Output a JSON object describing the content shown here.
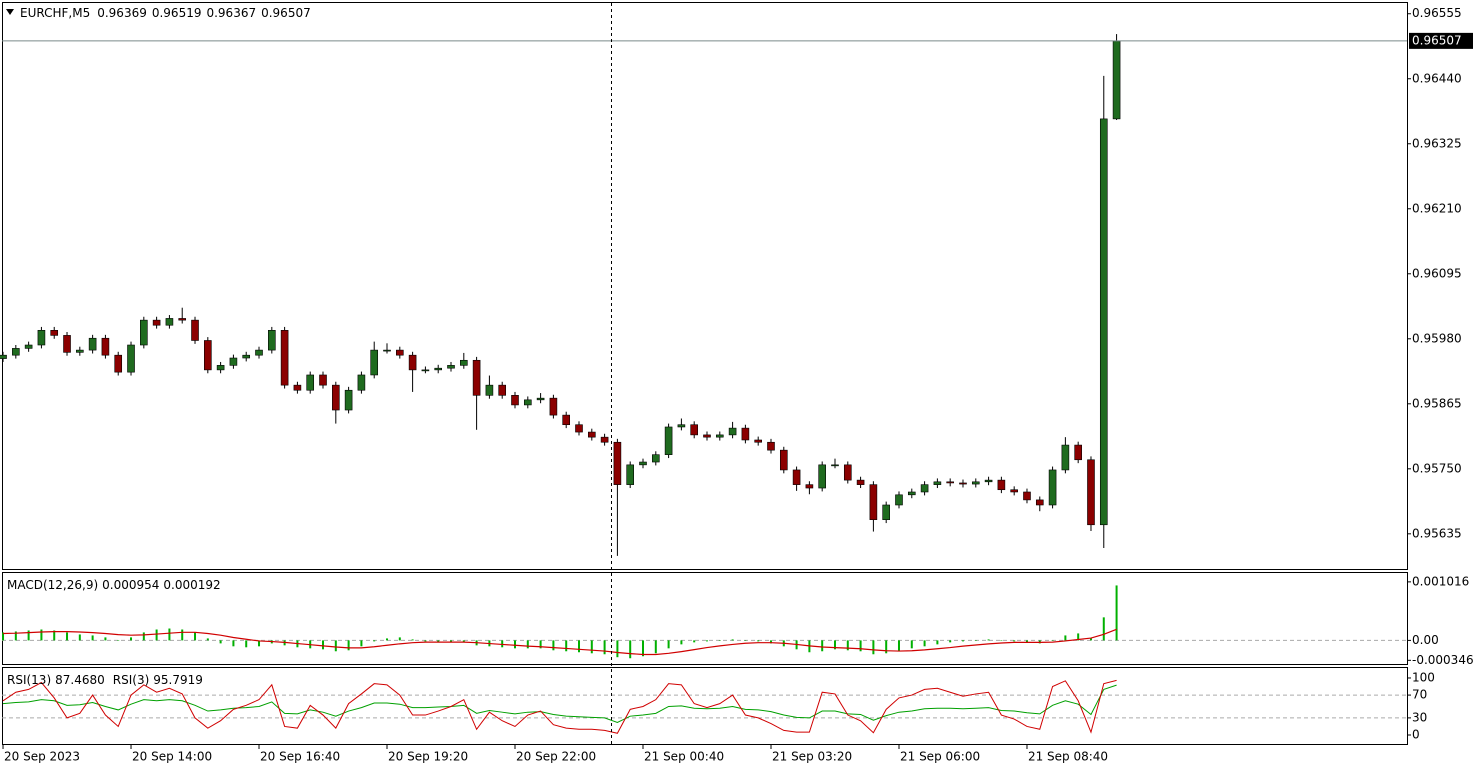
{
  "chart_data": [
    {
      "type": "candlestick",
      "title": "EURCHF,M5",
      "open": [
        0.95945,
        0.95951,
        0.95963,
        0.95969,
        0.95995,
        0.95986,
        0.95956,
        0.9596,
        0.95981,
        0.95951,
        0.95921,
        0.95969,
        0.96013,
        0.96004,
        0.96016,
        0.96013,
        0.95977,
        0.95925,
        0.95933,
        0.95946,
        0.95951,
        0.9596,
        0.95995,
        0.95898,
        0.95889,
        0.95916,
        0.95898,
        0.95854,
        0.95889,
        0.95916,
        0.9596,
        0.9596,
        0.95951,
        0.95925,
        0.95925,
        0.95928,
        0.95933,
        0.95942,
        0.9588,
        0.95898,
        0.9588,
        0.95863,
        0.95872,
        0.95875,
        0.95845,
        0.95828,
        0.95815,
        0.95806,
        0.95797,
        0.95722,
        0.95757,
        0.95762,
        0.95775,
        0.95824,
        0.95828,
        0.9581,
        0.95806,
        0.9581,
        0.95822,
        0.95801,
        0.95797,
        0.95783,
        0.95748,
        0.95722,
        0.95716,
        0.95757,
        0.95757,
        0.9573,
        0.95722,
        0.9566,
        0.95686,
        0.95704,
        0.95709,
        0.95722,
        0.95727,
        0.95725,
        0.95723,
        0.95727,
        0.9573,
        0.95713,
        0.95709,
        0.95695,
        0.95686,
        0.95748,
        0.95792,
        0.95766,
        0.95651,
        0.96369
      ],
      "high": [
        0.95957,
        0.95969,
        0.95975,
        0.96001,
        0.96001,
        0.95992,
        0.95966,
        0.95987,
        0.95987,
        0.95957,
        0.95975,
        0.96019,
        0.96019,
        0.96022,
        0.96035,
        0.96019,
        0.95983,
        0.95939,
        0.95952,
        0.95957,
        0.95966,
        0.96001,
        0.96001,
        0.95904,
        0.95922,
        0.95922,
        0.95904,
        0.95895,
        0.95922,
        0.95975,
        0.95972,
        0.95966,
        0.95957,
        0.95931,
        0.95934,
        0.95939,
        0.95955,
        0.95948,
        0.95915,
        0.95904,
        0.95886,
        0.95878,
        0.95884,
        0.95881,
        0.95851,
        0.95834,
        0.95821,
        0.95812,
        0.95803,
        0.95763,
        0.95768,
        0.95781,
        0.9583,
        0.95839,
        0.95834,
        0.95816,
        0.95816,
        0.95833,
        0.95828,
        0.95807,
        0.95803,
        0.95789,
        0.95754,
        0.95728,
        0.95763,
        0.95768,
        0.95763,
        0.95736,
        0.95728,
        0.95692,
        0.9571,
        0.95715,
        0.95728,
        0.95733,
        0.95733,
        0.95731,
        0.95733,
        0.95736,
        0.95736,
        0.95719,
        0.95715,
        0.95701,
        0.95754,
        0.95806,
        0.95798,
        0.95772,
        0.96445,
        0.96519
      ],
      "low": [
        0.95939,
        0.95945,
        0.95957,
        0.95963,
        0.9598,
        0.9595,
        0.9595,
        0.95954,
        0.95945,
        0.95915,
        0.95915,
        0.95963,
        0.95998,
        0.95998,
        0.96007,
        0.95971,
        0.95919,
        0.95919,
        0.95927,
        0.9594,
        0.95945,
        0.95954,
        0.95892,
        0.95883,
        0.95883,
        0.95892,
        0.9583,
        0.95848,
        0.95883,
        0.9591,
        0.95954,
        0.95945,
        0.95886,
        0.95919,
        0.95919,
        0.95922,
        0.95927,
        0.95819,
        0.95874,
        0.95874,
        0.95857,
        0.95857,
        0.95866,
        0.95839,
        0.95822,
        0.95809,
        0.958,
        0.95791,
        0.95596,
        0.95716,
        0.95751,
        0.95756,
        0.95769,
        0.95818,
        0.95804,
        0.958,
        0.958,
        0.95804,
        0.95795,
        0.95791,
        0.95777,
        0.95742,
        0.95711,
        0.95705,
        0.9571,
        0.95751,
        0.95724,
        0.95716,
        0.95639,
        0.95654,
        0.9568,
        0.95698,
        0.95703,
        0.95716,
        0.95719,
        0.95717,
        0.95717,
        0.95721,
        0.95707,
        0.95703,
        0.95689,
        0.95675,
        0.9568,
        0.95742,
        0.9576,
        0.9564,
        0.9561,
        0.96367
      ],
      "close": [
        0.95951,
        0.95963,
        0.95969,
        0.95995,
        0.95986,
        0.95956,
        0.9596,
        0.95981,
        0.95951,
        0.95921,
        0.95969,
        0.96013,
        0.96004,
        0.96016,
        0.96013,
        0.95977,
        0.95925,
        0.95933,
        0.95946,
        0.95951,
        0.9596,
        0.95995,
        0.95898,
        0.95889,
        0.95916,
        0.95898,
        0.95854,
        0.95889,
        0.95916,
        0.9596,
        0.9596,
        0.95951,
        0.95925,
        0.95925,
        0.95928,
        0.95933,
        0.95942,
        0.9588,
        0.95898,
        0.9588,
        0.95863,
        0.95872,
        0.95875,
        0.95845,
        0.95828,
        0.95815,
        0.95806,
        0.95797,
        0.95722,
        0.95757,
        0.95762,
        0.95775,
        0.95824,
        0.95828,
        0.9581,
        0.95806,
        0.9581,
        0.95822,
        0.95801,
        0.95797,
        0.95783,
        0.95748,
        0.95722,
        0.95716,
        0.95757,
        0.95757,
        0.9573,
        0.95722,
        0.9566,
        0.95686,
        0.95704,
        0.95709,
        0.95722,
        0.95727,
        0.95725,
        0.95723,
        0.95727,
        0.9573,
        0.95713,
        0.95709,
        0.95695,
        0.95686,
        0.95748,
        0.95792,
        0.95766,
        0.95651,
        0.96369,
        0.96507
      ],
      "up_color": "#1f6b1f",
      "down_color": "#8b0000",
      "xlim": [
        -0.08,
        109.69
      ],
      "ylim": [
        0.95571,
        0.96574
      ],
      "yticks": [
        0.96555,
        {
          "value": 0.9644,
          "label": "0.96440"
        },
        0.96325,
        {
          "value": 0.9621,
          "label": "0.96210"
        },
        0.96095,
        {
          "value": 0.9598,
          "label": "0.95980"
        },
        0.95865,
        {
          "value": 0.9575,
          "label": "0.95750"
        },
        0.95635
      ],
      "xticks": [
        {
          "value": 0,
          "label": "20 Sep 2023"
        },
        {
          "value": 10,
          "label": "20 Sep 14:00"
        },
        {
          "value": 20,
          "label": "20 Sep 16:40"
        },
        {
          "value": 30,
          "label": "20 Sep 19:20"
        },
        {
          "value": 40,
          "label": "20 Sep 22:00"
        },
        {
          "value": 50,
          "label": "21 Sep 00:40"
        },
        {
          "value": 60,
          "label": "21 Sep 03:20"
        },
        {
          "value": 70,
          "label": "21 Sep 06:00"
        },
        {
          "value": 80,
          "label": "21 Sep 08:40"
        }
      ]
    },
    {
      "type": "macd",
      "title": "MACD(12,26,9)",
      "color": "#00b000",
      "signal_color": "#d00000",
      "values": [
        0.000138,
        0.000155,
        0.000172,
        0.000189,
        0.000172,
        0.000138,
        0.000103,
        8.6e-05,
        5.2e-05,
        0,
        5.2e-05,
        0.000138,
        0.000189,
        0.000206,
        0.000189,
        0.000138,
        3.4e-05,
        -5.2e-05,
        -0.000103,
        -0.00012,
        -0.000103,
        -5.2e-05,
        -8.6e-05,
        -0.00012,
        -0.000138,
        -0.000155,
        -0.000189,
        -0.000172,
        -0.000103,
        -1.7e-05,
        3.4e-05,
        5.2e-05,
        1.7e-05,
        -1.7e-05,
        -3.4e-05,
        -3.4e-05,
        -3.4e-05,
        -8.6e-05,
        -0.000103,
        -0.00012,
        -0.000138,
        -0.000138,
        -0.000138,
        -0.000172,
        -0.000189,
        -0.000206,
        -0.000224,
        -0.000241,
        -0.000292,
        -0.00031,
        -0.000275,
        -0.000224,
        -0.000138,
        -6.9e-05,
        -3.4e-05,
        -1.7e-05,
        0,
        1.7e-05,
        0,
        -1.7e-05,
        -5.2e-05,
        -0.000103,
        -0.000155,
        -0.000206,
        -0.000189,
        -0.000155,
        -0.000172,
        -0.000189,
        -0.000241,
        -0.000224,
        -0.000189,
        -0.000138,
        -0.000103,
        -6.9e-05,
        -3.4e-05,
        -1.7e-05,
        0,
        1.7e-05,
        0,
        -1.7e-05,
        -3.4e-05,
        -5.2e-05,
        0,
        8.6e-05,
        0.000121,
        3.4e-05,
        0.0004,
        0.000954
      ],
      "signal": [
        0.00012,
        0.000125,
        0.000135,
        0.000145,
        0.000152,
        0.000152,
        0.000145,
        0.000135,
        0.00012,
        0.0001,
        9e-05,
        9.5e-05,
        0.00011,
        0.000125,
        0.00014,
        0.00014,
        0.00012,
        9e-05,
        5e-05,
        2e-05,
        -1e-05,
        -2e-05,
        -3.5e-05,
        -5.5e-05,
        -7.5e-05,
        -9.5e-05,
        -0.000115,
        -0.00013,
        -0.00013,
        -0.00011,
        -8.5e-05,
        -6e-05,
        -4e-05,
        -3e-05,
        -3e-05,
        -3e-05,
        -3e-05,
        -4e-05,
        -5.5e-05,
        -7e-05,
        -8.5e-05,
        -0.0001,
        -0.00011,
        -0.000125,
        -0.00014,
        -0.000155,
        -0.00017,
        -0.000185,
        -0.00021,
        -0.00023,
        -0.000245,
        -0.000245,
        -0.000225,
        -0.000195,
        -0.00016,
        -0.000125,
        -9.5e-05,
        -7e-05,
        -5e-05,
        -4e-05,
        -4e-05,
        -5e-05,
        -7e-05,
        -9.5e-05,
        -0.000115,
        -0.000125,
        -0.000135,
        -0.000145,
        -0.000165,
        -0.00018,
        -0.000185,
        -0.00018,
        -0.000165,
        -0.000145,
        -0.000125,
        -0.0001,
        -8e-05,
        -6e-05,
        -4.5e-05,
        -3.5e-05,
        -3.5e-05,
        -3.5e-05,
        -3e-05,
        -1e-05,
        1.5e-05,
        4e-05,
        0.000105,
        0.000192
      ],
      "ylim": [
        -0.00041,
        0.00117
      ],
      "yticks": [
        0.001016,
        {
          "value": 0,
          "label": "0.00"
        },
        -0.000346
      ],
      "levels": [
        0
      ]
    },
    {
      "type": "rsi",
      "series": [
        {
          "name": "RSI(13)",
          "color": "#00a000",
          "values": [
            55,
            57,
            58,
            62,
            60,
            52,
            53,
            57,
            50,
            44,
            54,
            62,
            60,
            62,
            60,
            52,
            42,
            44,
            47,
            48,
            50,
            58,
            38,
            37,
            44,
            40,
            33,
            42,
            48,
            56,
            56,
            54,
            48,
            48,
            49,
            50,
            52,
            38,
            43,
            40,
            37,
            40,
            41,
            36,
            33,
            32,
            31,
            30,
            22,
            33,
            35,
            38,
            50,
            51,
            47,
            46,
            47,
            50,
            45,
            44,
            41,
            35,
            31,
            30,
            42,
            42,
            37,
            36,
            26,
            34,
            40,
            42,
            46,
            47,
            47,
            46,
            47,
            48,
            43,
            42,
            39,
            37,
            52,
            60,
            54,
            36,
            80,
            87.468
          ],
          "value_labels": [
            null,
            null,
            null,
            null,
            null,
            null,
            null,
            null,
            null,
            null,
            null,
            null,
            null,
            null,
            null,
            null,
            null,
            null,
            null,
            null,
            null,
            null,
            null,
            null,
            null,
            null,
            null,
            null,
            null,
            null,
            null,
            null,
            null,
            null,
            null,
            null,
            null,
            null,
            null,
            null,
            null,
            null,
            null,
            null,
            null,
            null,
            null,
            null,
            null,
            null,
            null,
            null,
            null,
            null,
            null,
            null,
            null,
            null,
            null,
            null,
            null,
            null,
            null,
            null,
            null,
            null,
            null,
            null,
            null,
            null,
            null,
            null,
            null,
            null,
            null,
            null,
            null,
            null,
            null,
            null,
            null,
            null,
            null,
            null,
            null,
            null,
            null,
            "87.4680"
          ]
        },
        {
          "name": "RSI(3)",
          "color": "#d00000",
          "values": [
            60,
            75,
            80,
            92,
            65,
            30,
            38,
            70,
            35,
            15,
            70,
            88,
            75,
            82,
            72,
            30,
            12,
            25,
            45,
            52,
            62,
            88,
            15,
            12,
            52,
            35,
            12,
            55,
            72,
            90,
            88,
            70,
            35,
            35,
            42,
            50,
            62,
            10,
            40,
            25,
            15,
            35,
            42,
            18,
            12,
            10,
            10,
            8,
            3,
            45,
            50,
            62,
            90,
            88,
            55,
            48,
            55,
            70,
            35,
            30,
            20,
            8,
            5,
            5,
            75,
            72,
            35,
            25,
            4,
            45,
            65,
            70,
            80,
            82,
            75,
            68,
            72,
            75,
            35,
            28,
            15,
            10,
            85,
            95,
            60,
            5,
            90,
            95.7919
          ]
        }
      ],
      "ylim": [
        -15.8,
        117.5
      ],
      "yticks": [
        100,
        70,
        30,
        0
      ],
      "levels": [
        70,
        30
      ]
    }
  ]
}
